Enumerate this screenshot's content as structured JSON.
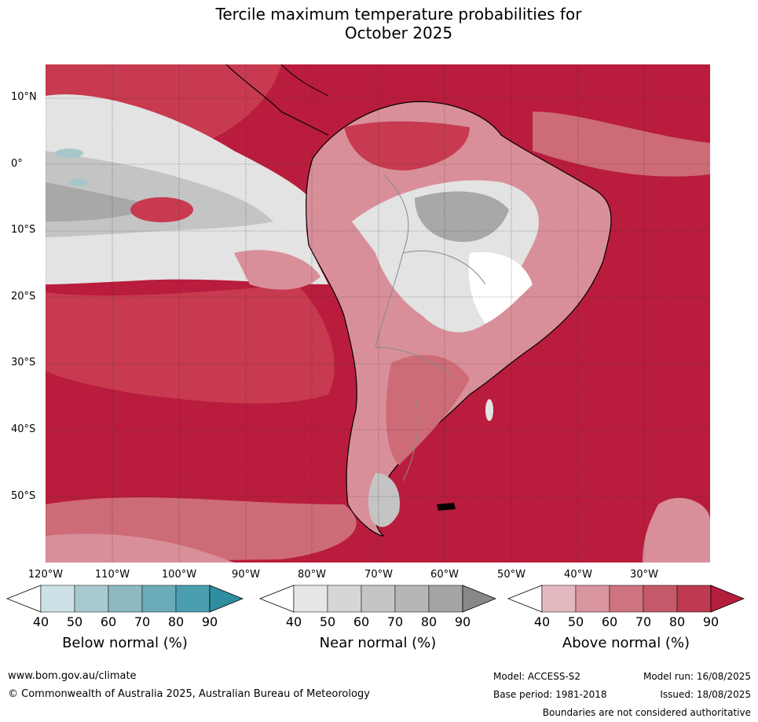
{
  "title": {
    "line1": "Tercile maximum temperature probabilities for",
    "line2": "October 2025"
  },
  "map": {
    "lat_labels": [
      "10°N",
      "0°",
      "10°S",
      "20°S",
      "30°S",
      "40°S",
      "50°S"
    ],
    "lon_labels": [
      "120°W",
      "110°W",
      "100°W",
      "90°W",
      "80°W",
      "70°W",
      "60°W",
      "50°W",
      "40°W",
      "30°W"
    ],
    "colors": {
      "above_90": "#b91c3c",
      "above_80": "#c73a50",
      "above_70": "#cd6b77",
      "above_60": "#d98f99",
      "above_50": "#e3b8be",
      "near_50": "#e3e3e3",
      "near_70": "#c4c4c4",
      "near_80": "#a8a8a8",
      "below_50": "#a7c7cd",
      "coast": "#000000",
      "border": "#8a8a8a"
    }
  },
  "colorbars": [
    {
      "title": "Below normal (%)",
      "ticks": [
        "40",
        "50",
        "60",
        "70",
        "80",
        "90"
      ],
      "colors": [
        "#cde2e7",
        "#a8c9cf",
        "#8cb9c2",
        "#6aacba",
        "#4a9eae",
        "#2e8fa1"
      ]
    },
    {
      "title": "Near normal (%)",
      "ticks": [
        "40",
        "50",
        "60",
        "70",
        "80",
        "90"
      ],
      "colors": [
        "#e6e6e6",
        "#d6d6d6",
        "#c5c5c5",
        "#b6b6b6",
        "#a4a4a4",
        "#888888"
      ]
    },
    {
      "title": "Above normal (%)",
      "ticks": [
        "40",
        "50",
        "60",
        "70",
        "80",
        "90"
      ],
      "colors": [
        "#e3b8be",
        "#d9959f",
        "#cd7480",
        "#c45a69",
        "#bd3a50",
        "#b51d3c"
      ]
    }
  ],
  "footer": {
    "website": "www.bom.gov.au/climate",
    "copyright": "© Commonwealth of Australia 2025, Australian Bureau of Meteorology",
    "model": "Model: ACCESS-S2",
    "model_run": "Model run: 16/08/2025",
    "base_period": "Base period: 1981-2018",
    "issued": "Issued: 18/08/2025",
    "disclaimer": "Boundaries are not considered authoritative"
  }
}
